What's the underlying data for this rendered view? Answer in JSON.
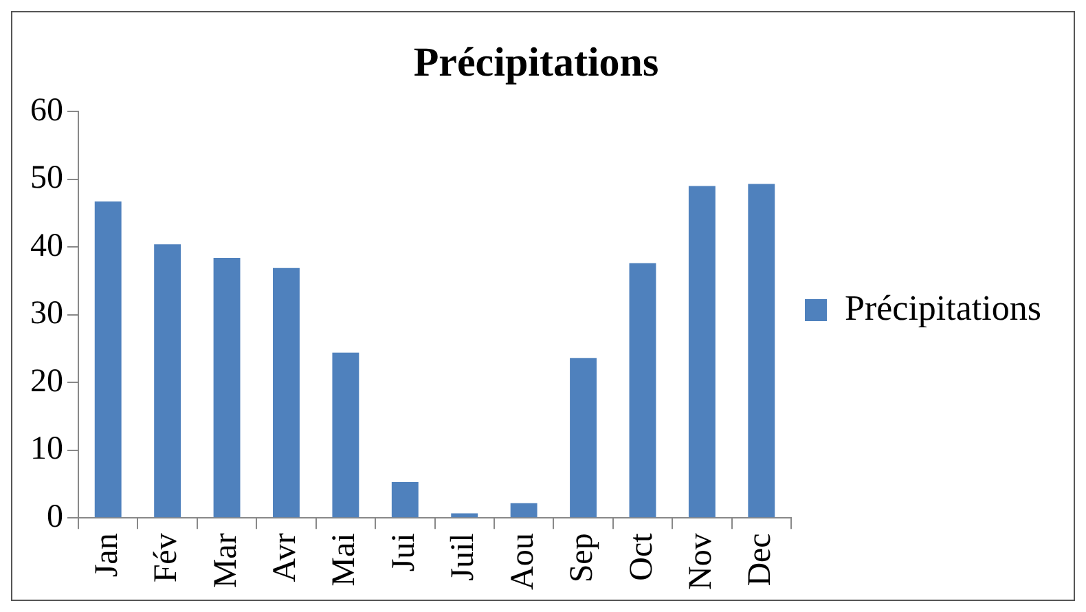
{
  "chart_data": {
    "type": "bar",
    "title": "Précipitations",
    "categories": [
      "Jan",
      "Fév",
      "Mar",
      "Avr",
      "Mai",
      "Jui",
      "Juil",
      "Aou",
      "Sep",
      "Oct",
      "Nov",
      "Dec"
    ],
    "series": [
      {
        "name": "Précipitations",
        "color": "#4f81bd",
        "values": [
          46.7,
          40.4,
          38.4,
          36.9,
          24.4,
          5.3,
          0.7,
          2.2,
          23.6,
          37.6,
          49,
          49.3
        ]
      }
    ],
    "ylim": [
      0,
      60
    ],
    "yticks": [
      0,
      10,
      20,
      30,
      40,
      50,
      60
    ],
    "grid": false,
    "legend": "right"
  }
}
